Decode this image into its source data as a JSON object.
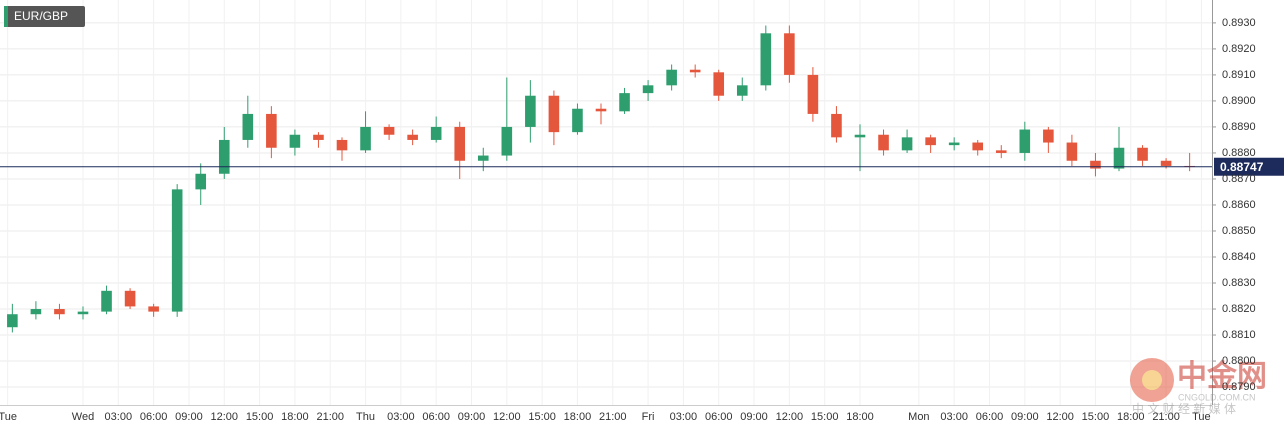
{
  "chart_data": {
    "type": "candlestick",
    "symbol": "EUR/GBP",
    "up_color": "#2e9e6e",
    "down_color": "#e4573d",
    "grid": true,
    "x": [
      -6,
      -4,
      -2,
      0,
      2,
      4,
      6,
      8,
      10,
      12,
      14,
      16,
      18,
      20,
      22,
      24,
      26,
      28,
      30,
      32,
      34,
      36,
      38,
      40,
      42,
      44,
      46,
      48,
      50,
      52,
      54,
      56,
      58,
      60,
      62,
      64,
      66,
      68,
      70,
      72,
      74,
      76,
      78,
      80,
      82,
      84,
      86,
      88,
      90,
      92,
      94
    ],
    "open": [
      0.8813,
      0.8818,
      0.882,
      0.8818,
      0.8819,
      0.8827,
      0.8821,
      0.8819,
      0.8866,
      0.8872,
      0.8885,
      0.8895,
      0.8882,
      0.8887,
      0.8885,
      0.8881,
      0.889,
      0.8887,
      0.8885,
      0.889,
      0.8877,
      0.8879,
      0.889,
      0.8902,
      0.8888,
      0.8897,
      0.8896,
      0.8903,
      0.8906,
      0.8912,
      0.8911,
      0.8902,
      0.8906,
      0.8926,
      0.891,
      0.8895,
      0.8886,
      0.8887,
      0.8881,
      0.8886,
      0.8883,
      0.8884,
      0.8881,
      0.888,
      0.8889,
      0.8884,
      0.8877,
      0.8874,
      0.8882,
      0.8877,
      0.8875
    ],
    "high": [
      0.8822,
      0.8823,
      0.8822,
      0.8821,
      0.8829,
      0.8828,
      0.8822,
      0.8868,
      0.8876,
      0.889,
      0.8902,
      0.8898,
      0.8889,
      0.8888,
      0.8886,
      0.8896,
      0.8891,
      0.8889,
      0.8894,
      0.8892,
      0.8882,
      0.8909,
      0.8908,
      0.8904,
      0.8899,
      0.8899,
      0.8905,
      0.8908,
      0.8914,
      0.8914,
      0.8912,
      0.8909,
      0.8929,
      0.8929,
      0.8913,
      0.8898,
      0.8891,
      0.8889,
      0.8889,
      0.8887,
      0.8886,
      0.8885,
      0.8883,
      0.8892,
      0.889,
      0.8887,
      0.888,
      0.889,
      0.8883,
      0.8878,
      0.888
    ],
    "low": [
      0.8811,
      0.8816,
      0.8816,
      0.8816,
      0.8818,
      0.882,
      0.8817,
      0.8817,
      0.886,
      0.887,
      0.8882,
      0.8878,
      0.8879,
      0.8882,
      0.8877,
      0.888,
      0.8885,
      0.8883,
      0.8884,
      0.887,
      0.8873,
      0.8877,
      0.8884,
      0.8883,
      0.8887,
      0.8891,
      0.8895,
      0.89,
      0.8904,
      0.8909,
      0.89,
      0.89,
      0.8904,
      0.8907,
      0.8892,
      0.8884,
      0.8873,
      0.8879,
      0.888,
      0.888,
      0.8881,
      0.8879,
      0.8878,
      0.8877,
      0.888,
      0.8875,
      0.8871,
      0.8873,
      0.8875,
      0.8874,
      0.8873
    ],
    "close": [
      0.8818,
      0.882,
      0.8818,
      0.8819,
      0.8827,
      0.8821,
      0.8819,
      0.8866,
      0.8872,
      0.8885,
      0.8895,
      0.8882,
      0.8887,
      0.8885,
      0.8881,
      0.889,
      0.8887,
      0.8885,
      0.889,
      0.8877,
      0.8879,
      0.889,
      0.8902,
      0.8888,
      0.8897,
      0.8896,
      0.8903,
      0.8906,
      0.8912,
      0.8911,
      0.8902,
      0.8906,
      0.8926,
      0.891,
      0.8895,
      0.8886,
      0.8887,
      0.8881,
      0.8886,
      0.8883,
      0.8884,
      0.8881,
      0.888,
      0.8889,
      0.8884,
      0.8877,
      0.8874,
      0.8882,
      0.8877,
      0.8875,
      0.88747
    ],
    "last_price": 0.88747,
    "xlim": [
      -7.05,
      95.9
    ],
    "xticks": [
      {
        "value": -6.4,
        "label": "Tue"
      },
      {
        "value": 0,
        "label": "Wed"
      },
      {
        "value": 3,
        "label": "03:00"
      },
      {
        "value": 6,
        "label": "06:00"
      },
      {
        "value": 9,
        "label": "09:00"
      },
      {
        "value": 12,
        "label": "12:00"
      },
      {
        "value": 15,
        "label": "15:00"
      },
      {
        "value": 18,
        "label": "18:00"
      },
      {
        "value": 21,
        "label": "21:00"
      },
      {
        "value": 24,
        "label": "Thu"
      },
      {
        "value": 27,
        "label": "03:00"
      },
      {
        "value": 30,
        "label": "06:00"
      },
      {
        "value": 33,
        "label": "09:00"
      },
      {
        "value": 36,
        "label": "12:00"
      },
      {
        "value": 39,
        "label": "15:00"
      },
      {
        "value": 42,
        "label": "18:00"
      },
      {
        "value": 45,
        "label": "21:00"
      },
      {
        "value": 48,
        "label": "Fri"
      },
      {
        "value": 51,
        "label": "03:00"
      },
      {
        "value": 54,
        "label": "06:00"
      },
      {
        "value": 57,
        "label": "09:00"
      },
      {
        "value": 60,
        "label": "12:00"
      },
      {
        "value": 63,
        "label": "15:00"
      },
      {
        "value": 66,
        "label": "18:00"
      },
      {
        "value": 71,
        "label": "Mon"
      },
      {
        "value": 74,
        "label": "03:00"
      },
      {
        "value": 77,
        "label": "06:00"
      },
      {
        "value": 80,
        "label": "09:00"
      },
      {
        "value": 83,
        "label": "12:00"
      },
      {
        "value": 86,
        "label": "15:00"
      },
      {
        "value": 89,
        "label": "18:00"
      },
      {
        "value": 92,
        "label": "21:00"
      },
      {
        "value": 95,
        "label": "Tue"
      }
    ],
    "ylim": [
      0.87831,
      0.89388
    ],
    "yticks": [
      {
        "value": 0.879,
        "label": "0.8790"
      },
      {
        "value": 0.88,
        "label": "0.8800"
      },
      {
        "value": 0.881,
        "label": "0.8810"
      },
      {
        "value": 0.882,
        "label": "0.8820"
      },
      {
        "value": 0.883,
        "label": "0.8830"
      },
      {
        "value": 0.884,
        "label": "0.8840"
      },
      {
        "value": 0.885,
        "label": "0.8850"
      },
      {
        "value": 0.886,
        "label": "0.8860"
      },
      {
        "value": 0.887,
        "label": "0.8870"
      },
      {
        "value": 0.888,
        "label": "0.8880"
      },
      {
        "value": 0.889,
        "label": "0.8890"
      },
      {
        "value": 0.89,
        "label": "0.8900"
      },
      {
        "value": 0.891,
        "label": "0.8910"
      },
      {
        "value": 0.892,
        "label": "0.8920"
      },
      {
        "value": 0.893,
        "label": "0.8930"
      }
    ],
    "watermark": {
      "brand": "中金网",
      "site": "CNGOLD.COM.CN",
      "slogan": "中 文 财 经 新 媒 体"
    }
  }
}
